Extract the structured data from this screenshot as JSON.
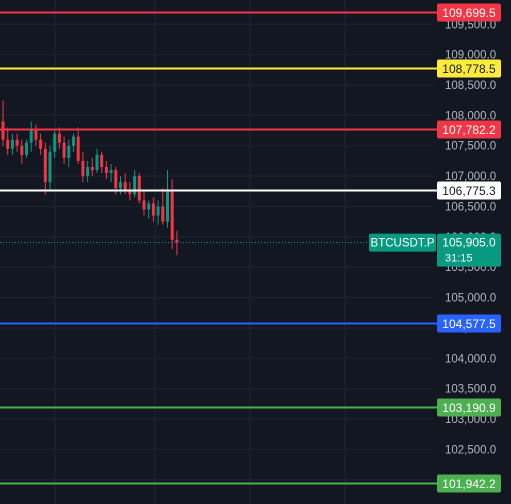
{
  "chart_data": {
    "type": "candlestick",
    "symbol": "BTCUSDT.P",
    "countdown": "31:15",
    "last_price": 105905.0,
    "last_price_label": "105,905.0",
    "price_axis": {
      "min": 101600,
      "max": 109900,
      "ticks": [
        {
          "value": 109500,
          "label": "109,500.0"
        },
        {
          "value": 109000,
          "label": "109,000.0"
        },
        {
          "value": 108500,
          "label": "108,500.0"
        },
        {
          "value": 108000,
          "label": "108,000.0"
        },
        {
          "value": 107500,
          "label": "107,500.0"
        },
        {
          "value": 107000,
          "label": "107,000.0"
        },
        {
          "value": 106500,
          "label": "106,500.0"
        },
        {
          "value": 106000,
          "label": "106,000.0"
        },
        {
          "value": 105500,
          "label": "105,500.0"
        },
        {
          "value": 105000,
          "label": "105,000.0"
        },
        {
          "value": 104500,
          "label": "104,500.0"
        },
        {
          "value": 104000,
          "label": "104,000.0"
        },
        {
          "value": 103500,
          "label": "103,500.0"
        },
        {
          "value": 103000,
          "label": "103,000.0"
        },
        {
          "value": 102500,
          "label": "102,500.0"
        },
        {
          "value": 102000,
          "label": "102,000.0"
        }
      ]
    },
    "levels": [
      {
        "value": 109699.5,
        "label": "109,699.5",
        "color": "#f23645",
        "text_color": "#ffffff"
      },
      {
        "value": 108778.5,
        "label": "108,778.5",
        "color": "#ffeb3b",
        "text_color": "#131722"
      },
      {
        "value": 107782.2,
        "label": "107,782.2",
        "color": "#f23645",
        "text_color": "#ffffff"
      },
      {
        "value": 106775.3,
        "label": "106,775.3",
        "color": "#ffffff",
        "text_color": "#131722"
      },
      {
        "value": 104577.5,
        "label": "104,577.5",
        "color": "#2962ff",
        "text_color": "#ffffff"
      },
      {
        "value": 103190.9,
        "label": "103,190.9",
        "color": "#4caf50",
        "text_color": "#ffffff"
      },
      {
        "value": 101942.2,
        "label": "101,942.2",
        "color": "#4caf50",
        "text_color": "#ffffff"
      }
    ],
    "candles": [
      {
        "o": 107900,
        "h": 108250,
        "l": 107500,
        "c": 107600
      },
      {
        "o": 107600,
        "h": 107800,
        "l": 107350,
        "c": 107450
      },
      {
        "o": 107450,
        "h": 107700,
        "l": 107350,
        "c": 107600
      },
      {
        "o": 107600,
        "h": 107700,
        "l": 107400,
        "c": 107500
      },
      {
        "o": 107500,
        "h": 107600,
        "l": 107200,
        "c": 107350
      },
      {
        "o": 107350,
        "h": 107600,
        "l": 107300,
        "c": 107550
      },
      {
        "o": 107550,
        "h": 107900,
        "l": 107400,
        "c": 107750
      },
      {
        "o": 107750,
        "h": 107850,
        "l": 107500,
        "c": 107600
      },
      {
        "o": 107600,
        "h": 107700,
        "l": 107350,
        "c": 107450
      },
      {
        "o": 107450,
        "h": 107550,
        "l": 106700,
        "c": 106900
      },
      {
        "o": 106900,
        "h": 107500,
        "l": 106750,
        "c": 107400
      },
      {
        "o": 107400,
        "h": 107750,
        "l": 107300,
        "c": 107700
      },
      {
        "o": 107700,
        "h": 107800,
        "l": 107450,
        "c": 107550
      },
      {
        "o": 107550,
        "h": 107650,
        "l": 107200,
        "c": 107300
      },
      {
        "o": 107300,
        "h": 107600,
        "l": 107150,
        "c": 107500
      },
      {
        "o": 107500,
        "h": 107700,
        "l": 107400,
        "c": 107650
      },
      {
        "o": 107650,
        "h": 107800,
        "l": 107200,
        "c": 107250
      },
      {
        "o": 107250,
        "h": 107400,
        "l": 106900,
        "c": 107000
      },
      {
        "o": 107000,
        "h": 107250,
        "l": 106900,
        "c": 107150
      },
      {
        "o": 107150,
        "h": 107300,
        "l": 107000,
        "c": 107100
      },
      {
        "o": 107100,
        "h": 107450,
        "l": 107050,
        "c": 107350
      },
      {
        "o": 107350,
        "h": 107400,
        "l": 107050,
        "c": 107150
      },
      {
        "o": 107150,
        "h": 107250,
        "l": 106950,
        "c": 107050
      },
      {
        "o": 107050,
        "h": 107200,
        "l": 106900,
        "c": 107100
      },
      {
        "o": 107100,
        "h": 107150,
        "l": 106700,
        "c": 106800
      },
      {
        "o": 106800,
        "h": 107000,
        "l": 106700,
        "c": 106900
      },
      {
        "o": 106900,
        "h": 107050,
        "l": 106700,
        "c": 106750
      },
      {
        "o": 106750,
        "h": 106900,
        "l": 106600,
        "c": 106700
      },
      {
        "o": 106700,
        "h": 107100,
        "l": 106650,
        "c": 107000
      },
      {
        "o": 107000,
        "h": 107050,
        "l": 106550,
        "c": 106600
      },
      {
        "o": 106600,
        "h": 106750,
        "l": 106350,
        "c": 106450
      },
      {
        "o": 106450,
        "h": 106600,
        "l": 106300,
        "c": 106550
      },
      {
        "o": 106550,
        "h": 106650,
        "l": 106250,
        "c": 106350
      },
      {
        "o": 106350,
        "h": 106600,
        "l": 106200,
        "c": 106500
      },
      {
        "o": 106500,
        "h": 106800,
        "l": 106200,
        "c": 106250
      },
      {
        "o": 106250,
        "h": 107100,
        "l": 106150,
        "c": 106750
      },
      {
        "o": 106750,
        "h": 106950,
        "l": 105800,
        "c": 105950
      },
      {
        "o": 105950,
        "h": 106100,
        "l": 105700,
        "c": 105905
      }
    ]
  }
}
